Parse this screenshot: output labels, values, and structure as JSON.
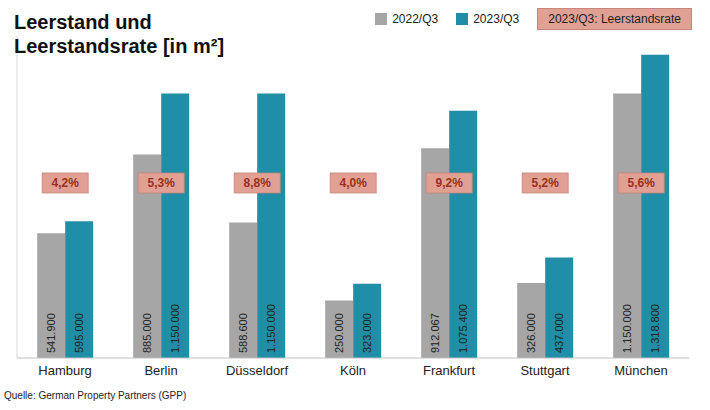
{
  "chart_data": {
    "type": "bar",
    "title": "Leerstand und Leerstandsrate [in m²]",
    "source": "Quelle: German Property Partners (GPP)",
    "categories": [
      "Hamburg",
      "Berlin",
      "Düsseldorf",
      "Köln",
      "Frankfurt",
      "Stuttgart",
      "München"
    ],
    "series": [
      {
        "name": "2022/Q3",
        "color": "#a6a6a6",
        "values": [
          541900,
          885000,
          588600,
          250000,
          912067,
          326000,
          1150000
        ],
        "value_labels": [
          "541.900",
          "885.000",
          "588.600",
          "250.000",
          "912.067",
          "326.000",
          "1.150.000"
        ]
      },
      {
        "name": "2023/Q3",
        "color": "#1f8ea6",
        "values": [
          595000,
          1150000,
          1150000,
          323000,
          1075400,
          437000,
          1318800
        ],
        "value_labels": [
          "595.000",
          "1.150.000",
          "1.150.000",
          "323.000",
          "1.075.400",
          "437.000",
          "1.318.800"
        ]
      }
    ],
    "rates": {
      "name": "2023/Q3: Leerstandsrate",
      "color": "#e0a194",
      "values": [
        4.2,
        5.3,
        8.8,
        4.0,
        9.2,
        5.2,
        5.6
      ],
      "value_labels": [
        "4,2%",
        "5,3%",
        "8,8%",
        "4,0%",
        "9,2%",
        "5,2%",
        "5,6%"
      ]
    },
    "ylim": [
      0,
      1400000
    ],
    "grid": false,
    "legend": "top-right",
    "data_labels": true,
    "tick_labels": "x"
  }
}
